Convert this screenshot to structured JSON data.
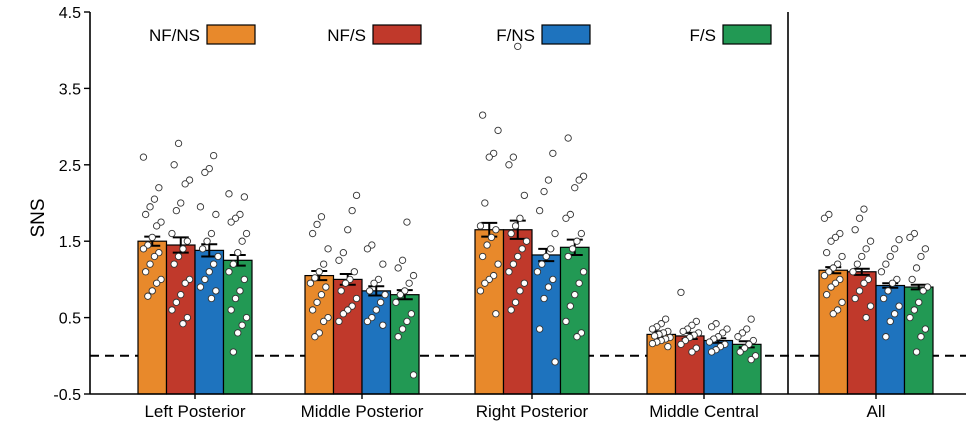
{
  "chart_data": {
    "type": "bar",
    "ylabel": "SNS",
    "ylim": [
      -0.5,
      4.5
    ],
    "yticks": [
      "4.5",
      "3.5",
      "2.5",
      "1.5",
      "0.5",
      "-0.5"
    ],
    "reference_line": 0,
    "categories": [
      "Left Posterior",
      "Middle Posterior",
      "Right Posterior",
      "Middle Central",
      "All"
    ],
    "legend_placement": "top",
    "series": [
      {
        "name": "NF/NS",
        "color": "#E8892B",
        "values": [
          1.5,
          1.05,
          1.65,
          0.28,
          1.12
        ],
        "errors": [
          0.06,
          0.06,
          0.09,
          0.04,
          0.04
        ],
        "points": [
          [
            2.6,
            2.2,
            2.05,
            1.95,
            1.85,
            1.75,
            1.7,
            1.55,
            1.45,
            1.4,
            1.35,
            1.3,
            1.2,
            1.1,
            1.0,
            0.95,
            0.85,
            0.78
          ],
          [
            1.82,
            1.72,
            1.6,
            1.4,
            1.2,
            1.1,
            1.02,
            0.95,
            0.9,
            0.8,
            0.7,
            0.6,
            0.5,
            0.45,
            0.3,
            0.25
          ],
          [
            3.15,
            2.95,
            2.65,
            2.6,
            2.0,
            1.7,
            1.65,
            1.55,
            1.45,
            1.3,
            1.2,
            1.05,
            1.0,
            0.95,
            0.85,
            0.55
          ],
          [
            0.48,
            0.42,
            0.38,
            0.35,
            0.32,
            0.3,
            0.28,
            0.26,
            0.24,
            0.22,
            0.2,
            0.18,
            0.16,
            0.12
          ],
          [
            1.85,
            1.8,
            1.6,
            1.55,
            1.5,
            1.35,
            1.3,
            1.2,
            1.15,
            1.1,
            1.05,
            1.0,
            0.95,
            0.9,
            0.8,
            0.7,
            0.6,
            0.55
          ]
        ]
      },
      {
        "name": "NF/S",
        "color": "#C0392B",
        "values": [
          1.45,
          1.0,
          1.65,
          0.26,
          1.1
        ],
        "errors": [
          0.1,
          0.07,
          0.12,
          0.04,
          0.04
        ],
        "points": [
          [
            2.78,
            2.5,
            2.3,
            2.25,
            2.0,
            1.9,
            1.6,
            1.5,
            1.4,
            1.3,
            1.2,
            1.0,
            0.95,
            0.8,
            0.7,
            0.6,
            0.5,
            0.42
          ],
          [
            2.1,
            1.9,
            1.65,
            1.35,
            1.25,
            1.1,
            1.0,
            0.95,
            0.85,
            0.75,
            0.65,
            0.6,
            0.55,
            0.45
          ],
          [
            4.05,
            2.6,
            2.5,
            2.1,
            1.8,
            1.7,
            1.6,
            1.5,
            1.4,
            1.3,
            1.2,
            1.1,
            0.95,
            0.85,
            0.7,
            0.6
          ],
          [
            0.83,
            0.45,
            0.4,
            0.35,
            0.32,
            0.3,
            0.27,
            0.24,
            0.2,
            0.15,
            0.1,
            0.05
          ],
          [
            1.92,
            1.8,
            1.65,
            1.5,
            1.4,
            1.3,
            1.2,
            1.1,
            1.0,
            0.95,
            0.85,
            0.75,
            0.65,
            0.5
          ]
        ]
      },
      {
        "name": "F/NS",
        "color": "#1E73BE",
        "values": [
          1.38,
          0.85,
          1.32,
          0.2,
          0.92
        ],
        "errors": [
          0.08,
          0.06,
          0.08,
          0.03,
          0.03
        ],
        "points": [
          [
            2.62,
            2.45,
            2.4,
            1.95,
            1.85,
            1.6,
            1.5,
            1.4,
            1.3,
            1.2,
            1.1,
            1.0,
            0.9,
            0.85,
            0.75
          ],
          [
            1.45,
            1.4,
            1.2,
            1.0,
            0.95,
            0.85,
            0.8,
            0.7,
            0.6,
            0.5,
            0.45,
            0.4
          ],
          [
            2.65,
            2.3,
            2.15,
            1.9,
            1.6,
            1.4,
            1.3,
            1.2,
            1.1,
            1.0,
            0.9,
            0.75,
            0.35,
            -0.08
          ],
          [
            0.42,
            0.38,
            0.35,
            0.3,
            0.25,
            0.22,
            0.18,
            0.15,
            0.12,
            0.08,
            0.05
          ],
          [
            1.52,
            1.4,
            1.3,
            1.2,
            1.1,
            1.0,
            0.95,
            0.85,
            0.75,
            0.65,
            0.55,
            0.45,
            0.25
          ]
        ]
      },
      {
        "name": "F/S",
        "color": "#229954",
        "values": [
          1.25,
          0.8,
          1.42,
          0.15,
          0.9
        ],
        "errors": [
          0.07,
          0.06,
          0.1,
          0.04,
          0.03
        ],
        "points": [
          [
            2.12,
            2.08,
            1.85,
            1.8,
            1.75,
            1.6,
            1.5,
            1.35,
            1.2,
            1.1,
            1.0,
            0.85,
            0.75,
            0.6,
            0.5,
            0.4,
            0.3,
            0.05
          ],
          [
            1.75,
            1.25,
            1.15,
            1.05,
            0.95,
            0.85,
            0.8,
            0.7,
            0.55,
            0.45,
            0.35,
            0.25,
            -0.25
          ],
          [
            2.85,
            2.35,
            2.3,
            2.2,
            1.85,
            1.8,
            1.6,
            1.5,
            1.4,
            1.3,
            1.1,
            0.95,
            0.8,
            0.65,
            0.45,
            0.3,
            0.25
          ],
          [
            0.48,
            0.35,
            0.3,
            0.25,
            0.2,
            0.15,
            0.1,
            0.05,
            0.0,
            -0.05
          ],
          [
            1.6,
            1.55,
            1.4,
            1.3,
            1.15,
            1.0,
            0.9,
            0.85,
            0.7,
            0.6,
            0.5,
            0.35,
            0.25,
            0.05
          ]
        ]
      }
    ]
  }
}
